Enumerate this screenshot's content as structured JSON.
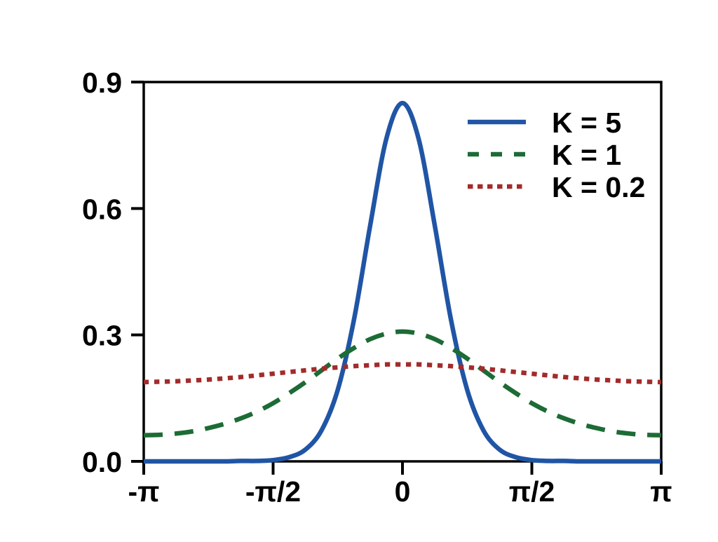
{
  "chart_data": {
    "type": "line",
    "title": "",
    "xlabel": "",
    "ylabel": "",
    "xlim_pi": [
      -1,
      1
    ],
    "ylim": [
      0,
      0.9
    ],
    "grid": false,
    "background_color": "#ffffff",
    "axis_color": "#000000",
    "x_ticks": [
      {
        "value_pi": -1.0,
        "label": "-π"
      },
      {
        "value_pi": -0.5,
        "label": "-π/2"
      },
      {
        "value_pi": 0.0,
        "label": "0"
      },
      {
        "value_pi": 0.5,
        "label": "π/2"
      },
      {
        "value_pi": 1.0,
        "label": "π"
      }
    ],
    "y_ticks": [
      {
        "value": 0.0,
        "label": "0.0"
      },
      {
        "value": 0.3,
        "label": "0.3"
      },
      {
        "value": 0.6,
        "label": "0.6"
      },
      {
        "value": 0.9,
        "label": "0.9"
      }
    ],
    "x_pi": [
      -1,
      -0.9375,
      -0.875,
      -0.8125,
      -0.75,
      -0.6875,
      -0.625,
      -0.5625,
      -0.5,
      -0.4375,
      -0.375,
      -0.3125,
      -0.25,
      -0.1875,
      -0.125,
      -0.0625,
      0,
      0.0625,
      0.125,
      0.1875,
      0.25,
      0.3125,
      0.375,
      0.4375,
      0.5,
      0.5625,
      0.625,
      0.6875,
      0.75,
      0.8125,
      0.875,
      0.9375,
      1
    ],
    "series": [
      {
        "name": "K = 5",
        "color": "#2055a5",
        "style": "solid",
        "values": [
          0,
          0,
          0,
          0,
          0,
          0,
          0.001,
          0.001,
          0.003,
          0.01,
          0.028,
          0.074,
          0.17,
          0.336,
          0.559,
          0.765,
          0.85,
          0.765,
          0.559,
          0.336,
          0.17,
          0.074,
          0.028,
          0.01,
          0.003,
          0.001,
          0.001,
          0,
          0,
          0,
          0,
          0,
          0
        ]
      },
      {
        "name": "K = 1",
        "color": "#1d6b35",
        "style": "dashed",
        "values": [
          0.062,
          0.063,
          0.066,
          0.071,
          0.079,
          0.089,
          0.102,
          0.118,
          0.138,
          0.162,
          0.188,
          0.216,
          0.244,
          0.269,
          0.29,
          0.303,
          0.308,
          0.303,
          0.29,
          0.269,
          0.244,
          0.216,
          0.188,
          0.162,
          0.138,
          0.118,
          0.102,
          0.089,
          0.079,
          0.071,
          0.066,
          0.063,
          0.062
        ]
      },
      {
        "name": "K = 0.2",
        "color": "#a32b2b",
        "style": "dotted",
        "values": [
          0.188,
          0.189,
          0.19,
          0.192,
          0.194,
          0.197,
          0.2,
          0.204,
          0.208,
          0.212,
          0.216,
          0.22,
          0.223,
          0.226,
          0.228,
          0.23,
          0.23,
          0.23,
          0.228,
          0.226,
          0.223,
          0.22,
          0.216,
          0.212,
          0.208,
          0.204,
          0.2,
          0.197,
          0.194,
          0.192,
          0.19,
          0.189,
          0.188
        ]
      }
    ],
    "legend": {
      "position": "upper-right",
      "frame": false,
      "entries": [
        "K = 5",
        "K = 1",
        "K = 0.2"
      ]
    }
  }
}
